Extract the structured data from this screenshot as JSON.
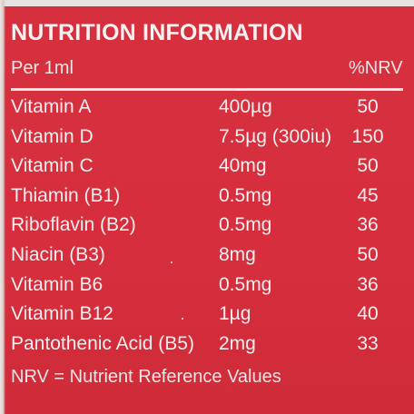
{
  "title": "NUTRITION INFORMATION",
  "header": {
    "per": "Per 1ml",
    "nrv": "%NRV"
  },
  "rows": [
    {
      "nutrient": "Vitamin A",
      "amount": "400µg",
      "nrv": "50"
    },
    {
      "nutrient": "Vitamin D",
      "amount": "7.5µg (300iu)",
      "nrv": "150"
    },
    {
      "nutrient": "Vitamin C",
      "amount": "40mg",
      "nrv": "50"
    },
    {
      "nutrient": "Thiamin (B1)",
      "amount": "0.5mg",
      "nrv": "45"
    },
    {
      "nutrient": "Riboflavin (B2)",
      "amount": "0.5mg",
      "nrv": "36"
    },
    {
      "nutrient": "Niacin (B3)",
      "amount": "8mg",
      "nrv": "50"
    },
    {
      "nutrient": "Vitamin B6",
      "amount": "0.5mg",
      "nrv": "36"
    },
    {
      "nutrient": "Vitamin B12",
      "amount": "1µg",
      "nrv": "40"
    },
    {
      "nutrient": "Pantothenic Acid (B5)",
      "amount": "2mg",
      "nrv": "33"
    }
  ],
  "footnote": "NRV = Nutrient Reference Values",
  "colors": {
    "background": "#d72f3e",
    "text": "#f6eef0"
  }
}
